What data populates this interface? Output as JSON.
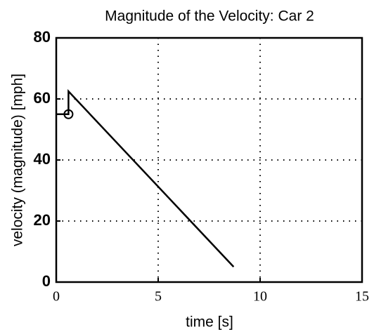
{
  "chart_data": {
    "type": "line",
    "title": "Magnitude of the Velocity: Car 2",
    "xlabel": "time [s]",
    "ylabel": "velocity (magnitude)  [mph]",
    "series": [
      {
        "color": "#000000",
        "x": [
          0,
          0.6,
          0.6,
          8.7
        ],
        "values": [
          55,
          55,
          62.5,
          5
        ]
      },
      {
        "color": "#000000",
        "marker": "o",
        "x": [
          0.6
        ],
        "values": [
          55
        ]
      }
    ],
    "xlim": [
      0,
      15
    ],
    "xticks": [
      0,
      5,
      10,
      15
    ],
    "ylim": [
      0,
      80
    ],
    "yticks": [
      0,
      20,
      40,
      60,
      80
    ],
    "grid": true
  }
}
